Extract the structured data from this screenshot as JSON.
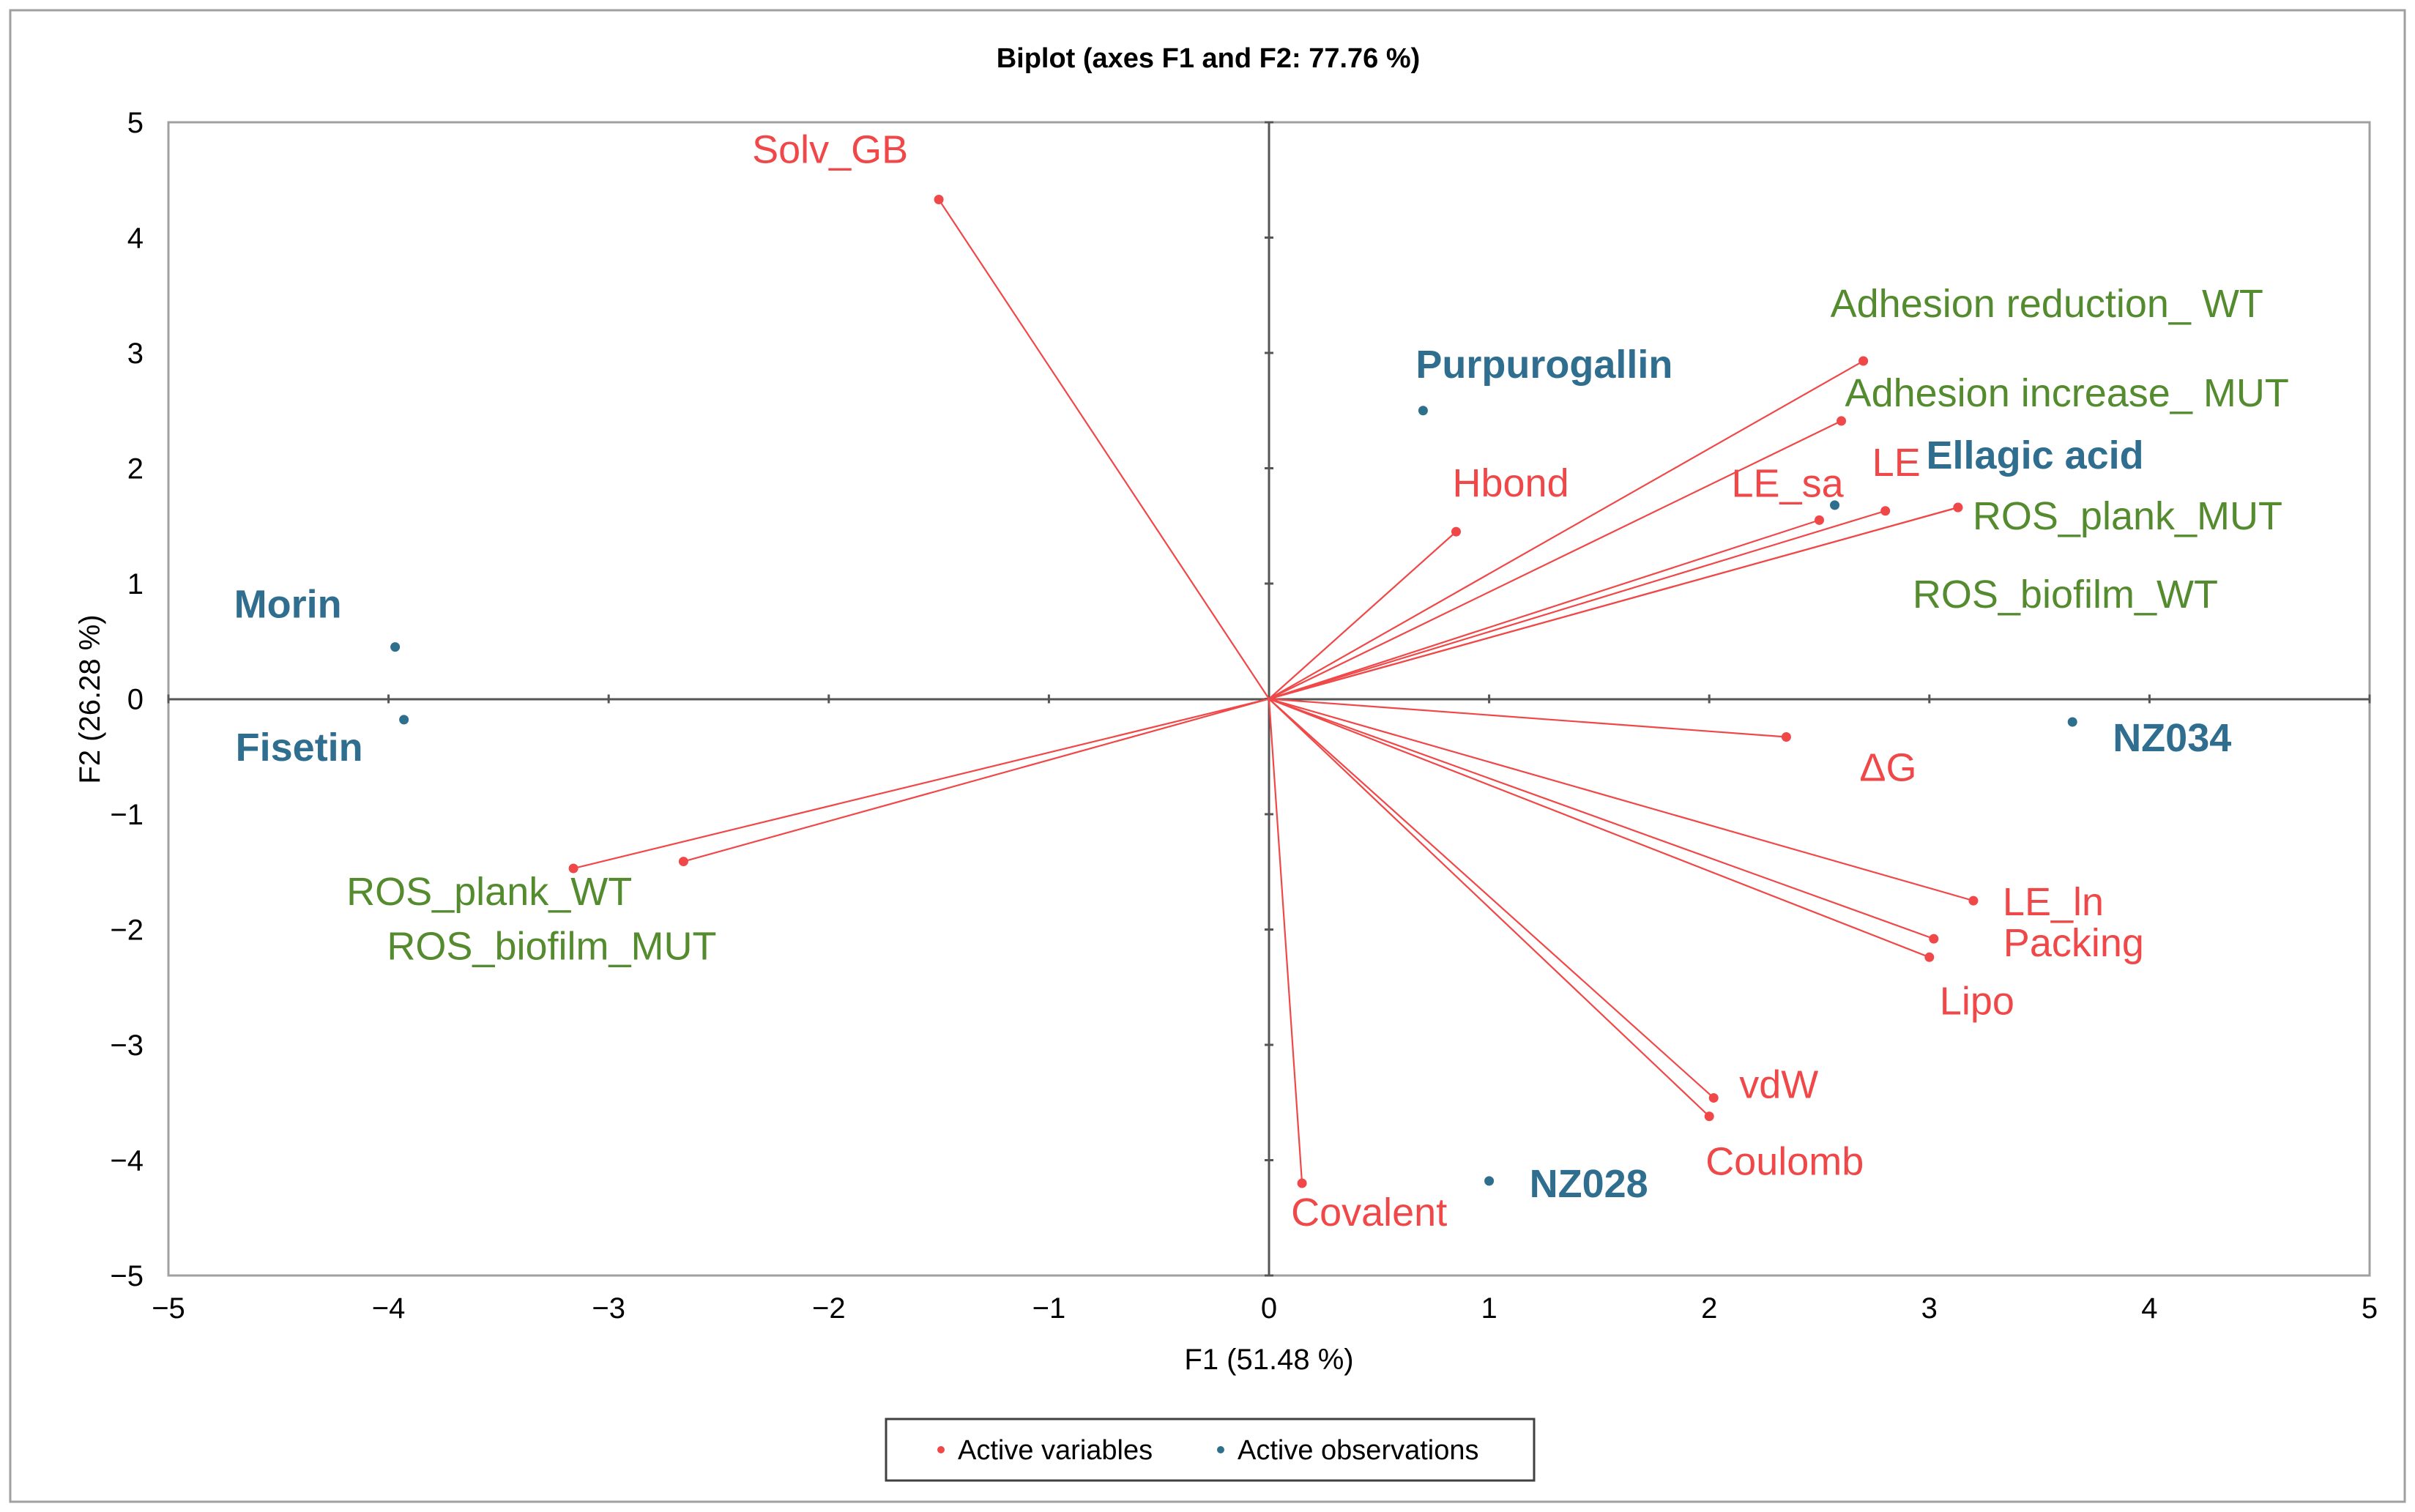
{
  "chart_data": {
    "type": "scatter",
    "subtype": "biplot",
    "title": "Biplot (axes F1 and F2: 77.76 %)",
    "xlabel": "F1 (51.48 %)",
    "ylabel": "F2 (26.28 %)",
    "xlim": [
      -5,
      5
    ],
    "ylim": [
      -5,
      5
    ],
    "xticks": [
      "−5",
      "−4",
      "−3",
      "−2",
      "−1",
      "0",
      "1",
      "2",
      "3",
      "4",
      "5"
    ],
    "yticks": [
      "5",
      "4",
      "3",
      "2",
      "1",
      "0",
      "−1",
      "−2",
      "−3",
      "−4",
      "−5"
    ],
    "xtick_values": [
      -5,
      -4,
      -3,
      -2,
      -1,
      0,
      1,
      2,
      3,
      4,
      5
    ],
    "ytick_values": [
      5,
      4,
      3,
      2,
      1,
      0,
      -1,
      -2,
      -3,
      -4,
      -5
    ],
    "legend": {
      "position": "bottom",
      "items": [
        {
          "label": "Active variables",
          "color": "#f04848"
        },
        {
          "label": "Active observations",
          "color": "#2e6f8e"
        }
      ]
    },
    "colors": {
      "variable": "#f04848",
      "observation": "#2e6f8e",
      "observation_label": "#2f6e8f",
      "green_label": "#558b2f",
      "axis": "#000000",
      "frame": "#a0a0a0"
    },
    "variables": [
      {
        "name": "Solv_GB",
        "x": -1.5,
        "y": 4.33,
        "label_color": "red"
      },
      {
        "name": "Hbond",
        "x": 0.85,
        "y": 1.45,
        "label_color": "red"
      },
      {
        "name": "LE_sa",
        "x": 2.5,
        "y": 1.55,
        "label_color": "red"
      },
      {
        "name": "LE",
        "x": 2.8,
        "y": 1.63,
        "label_color": "red"
      },
      {
        "name": "Adhesion reduction_ WT",
        "x": 2.7,
        "y": 2.93,
        "label_color": "green"
      },
      {
        "name": "Adhesion increase_ MUT",
        "x": 2.6,
        "y": 2.41,
        "label_color": "green"
      },
      {
        "name": "ROS_plank_MUT",
        "x": 3.13,
        "y": 1.66,
        "label_color": "green"
      },
      {
        "name": "ROS_biofilm_WT",
        "x": 3.13,
        "y": 1.66,
        "label_color": "green"
      },
      {
        "name": "ΔG",
        "x": 2.35,
        "y": -0.33,
        "label_color": "red"
      },
      {
        "name": "LE_ln",
        "x": 3.2,
        "y": -1.75,
        "label_color": "red"
      },
      {
        "name": "Packing",
        "x": 3.02,
        "y": -2.08,
        "label_color": "red"
      },
      {
        "name": "Lipo",
        "x": 3.0,
        "y": -2.24,
        "label_color": "red"
      },
      {
        "name": "vdW",
        "x": 2.02,
        "y": -3.46,
        "label_color": "red"
      },
      {
        "name": "Coulomb",
        "x": 2.0,
        "y": -3.62,
        "label_color": "red"
      },
      {
        "name": "Covalent",
        "x": 0.15,
        "y": -4.2,
        "label_color": "red"
      },
      {
        "name": "ROS_plank_WT",
        "x": -3.16,
        "y": -1.47,
        "label_color": "green"
      },
      {
        "name": "ROS_biofilm_MUT",
        "x": -2.66,
        "y": -1.41,
        "label_color": "green"
      }
    ],
    "observations": [
      {
        "name": "Purpurogallin",
        "x": 0.7,
        "y": 2.5
      },
      {
        "name": "Ellagic acid",
        "x": 2.57,
        "y": 1.68
      },
      {
        "name": "Morin",
        "x": -3.97,
        "y": 0.45
      },
      {
        "name": "Fisetin",
        "x": -3.93,
        "y": -0.18
      },
      {
        "name": "NZ034",
        "x": 3.65,
        "y": -0.2
      },
      {
        "name": "NZ028",
        "x": 1.0,
        "y": -4.18
      }
    ]
  }
}
